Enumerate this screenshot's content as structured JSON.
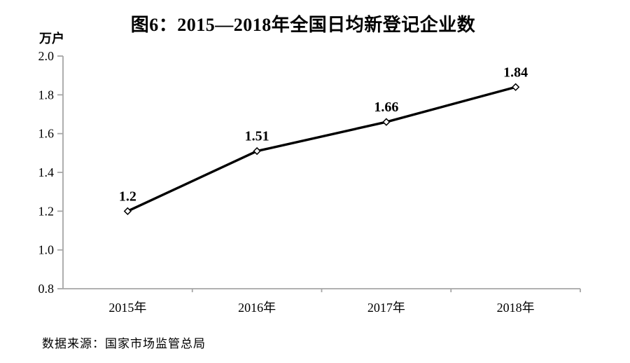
{
  "chart_data": {
    "type": "line",
    "title": "图6：2015—2018年全国日均新登记企业数",
    "unit_label": "万户",
    "categories": [
      "2015年",
      "2016年",
      "2017年",
      "2018年"
    ],
    "values": [
      1.2,
      1.51,
      1.66,
      1.84
    ],
    "data_labels": [
      "1.2",
      "1.51",
      "1.66",
      "1.84"
    ],
    "ylim": [
      0.8,
      2.0
    ],
    "ytick_step": 0.2,
    "ytick_labels": [
      "2.0",
      "1.8",
      "1.6",
      "1.4",
      "1.2",
      "1.0",
      "0.8"
    ],
    "xlabel": "",
    "ylabel": "万户",
    "grid": "off",
    "legend": "none",
    "line_color": "#000000",
    "marker_style": "open-diamond",
    "marker_fill": "#ffffff",
    "axis_color": "#a6a6a6",
    "text_color": "#000000"
  },
  "source": {
    "text": "数据来源：国家市场监管总局"
  }
}
